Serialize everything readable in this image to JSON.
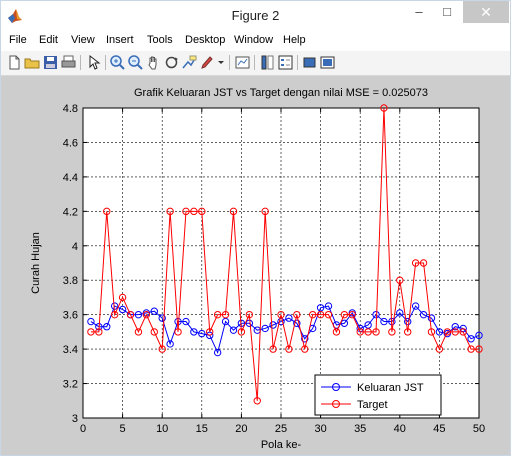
{
  "window": {
    "title": "Figure 2",
    "minimize_glyph": "–",
    "maximize_glyph": "□",
    "close_glyph": "✕"
  },
  "menu": {
    "items": [
      "File",
      "Edit",
      "View",
      "Insert",
      "Tools",
      "Desktop",
      "Window",
      "Help"
    ]
  },
  "toolbar": {
    "buttons": [
      "new-figure-icon",
      "open-file-icon",
      "save-icon",
      "print-icon",
      "edit-plot-arrow-icon",
      "zoom-in-icon",
      "zoom-out-icon",
      "pan-hand-icon",
      "rotate-3d-icon",
      "data-cursor-icon",
      "brush-icon",
      "link-plot-icon",
      "colorbar-icon",
      "legend-icon",
      "hide-plot-tools-icon",
      "show-plot-tools-icon"
    ]
  },
  "colors": {
    "figure_bg": "#cdcdcd",
    "axes_bg": "#ffffff",
    "series_blue": "#0000ff",
    "series_red": "#ff0000"
  },
  "chart_data": {
    "type": "line",
    "title": "Grafik Keluaran JST vs Target dengan nilai MSE = 0.025073",
    "xlabel": "Pola ke-",
    "ylabel": "Curah Hujan",
    "xlim": [
      0,
      50
    ],
    "ylim": [
      3,
      4.8
    ],
    "xticks": [
      0,
      5,
      10,
      15,
      20,
      25,
      30,
      35,
      40,
      45,
      50
    ],
    "yticks": [
      3,
      3.2,
      3.4,
      3.6,
      3.8,
      4,
      4.2,
      4.4,
      4.6,
      4.8
    ],
    "grid": true,
    "legend_position": "bottom-right",
    "x": [
      1,
      2,
      3,
      4,
      5,
      6,
      7,
      8,
      9,
      10,
      11,
      12,
      13,
      14,
      15,
      16,
      17,
      18,
      19,
      20,
      21,
      22,
      23,
      24,
      25,
      26,
      27,
      28,
      29,
      30,
      31,
      32,
      33,
      34,
      35,
      36,
      37,
      38,
      39,
      40,
      41,
      42,
      43,
      44,
      45,
      46,
      47,
      48,
      49,
      50
    ],
    "series": [
      {
        "name": "Keluaran JST",
        "color": "#0000ff",
        "marker": "circle",
        "values": [
          3.56,
          3.53,
          3.53,
          3.65,
          3.63,
          3.6,
          3.6,
          3.61,
          3.62,
          3.58,
          3.43,
          3.56,
          3.56,
          3.5,
          3.49,
          3.48,
          3.38,
          3.56,
          3.51,
          3.55,
          3.55,
          3.51,
          3.52,
          3.54,
          3.56,
          3.58,
          3.55,
          3.46,
          3.52,
          3.64,
          3.65,
          3.54,
          3.55,
          3.61,
          3.52,
          3.54,
          3.6,
          3.56,
          3.56,
          3.61,
          3.56,
          3.65,
          3.6,
          3.58,
          3.5,
          3.49,
          3.53,
          3.52,
          3.46,
          3.48
        ]
      },
      {
        "name": "Target",
        "color": "#ff0000",
        "marker": "circle",
        "values": [
          3.5,
          3.5,
          4.2,
          3.6,
          3.7,
          3.6,
          3.5,
          3.6,
          3.5,
          3.4,
          4.2,
          3.5,
          4.2,
          4.2,
          4.2,
          3.5,
          3.6,
          3.6,
          4.2,
          3.5,
          3.6,
          3.1,
          4.2,
          3.4,
          3.6,
          3.4,
          3.6,
          3.4,
          3.6,
          3.6,
          3.6,
          3.5,
          3.6,
          3.6,
          3.5,
          3.5,
          3.5,
          4.8,
          3.5,
          3.8,
          3.5,
          3.9,
          3.9,
          3.5,
          3.4,
          3.5,
          3.5,
          3.5,
          3.4,
          3.4
        ]
      }
    ]
  }
}
